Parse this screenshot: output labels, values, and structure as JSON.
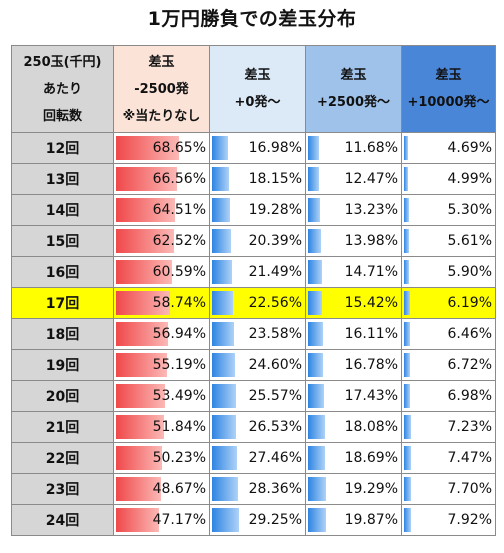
{
  "chart_data": {
    "type": "table",
    "title": "1万円勝負での差玉分布",
    "columns": [
      [
        "250玉(千円)",
        "あたり",
        "回転数"
      ],
      [
        "差玉",
        "-2500発",
        "※当たりなし"
      ],
      [
        "差玉",
        "+0発～"
      ],
      [
        "差玉",
        "+2500発～"
      ],
      [
        "差玉",
        "+10000発～"
      ]
    ],
    "highlight_row": "17回",
    "rows": [
      {
        "label": "12回",
        "values": [
          "68.65%",
          "16.98%",
          "11.68%",
          "4.69%"
        ]
      },
      {
        "label": "13回",
        "values": [
          "66.56%",
          "18.15%",
          "12.47%",
          "4.99%"
        ]
      },
      {
        "label": "14回",
        "values": [
          "64.51%",
          "19.28%",
          "13.23%",
          "5.30%"
        ]
      },
      {
        "label": "15回",
        "values": [
          "62.52%",
          "20.39%",
          "13.98%",
          "5.61%"
        ]
      },
      {
        "label": "16回",
        "values": [
          "60.59%",
          "21.49%",
          "14.71%",
          "5.90%"
        ]
      },
      {
        "label": "17回",
        "values": [
          "58.74%",
          "22.56%",
          "15.42%",
          "6.19%"
        ]
      },
      {
        "label": "18回",
        "values": [
          "56.94%",
          "23.58%",
          "16.11%",
          "6.46%"
        ]
      },
      {
        "label": "19回",
        "values": [
          "55.19%",
          "24.60%",
          "16.78%",
          "6.72%"
        ]
      },
      {
        "label": "20回",
        "values": [
          "53.49%",
          "25.57%",
          "17.43%",
          "6.98%"
        ]
      },
      {
        "label": "21回",
        "values": [
          "51.84%",
          "26.53%",
          "18.08%",
          "7.23%"
        ]
      },
      {
        "label": "22回",
        "values": [
          "50.23%",
          "27.46%",
          "18.69%",
          "7.47%"
        ]
      },
      {
        "label": "23回",
        "values": [
          "48.67%",
          "28.36%",
          "19.29%",
          "7.70%"
        ]
      },
      {
        "label": "24回",
        "values": [
          "47.17%",
          "29.25%",
          "19.87%",
          "7.92%"
        ]
      }
    ],
    "colors": {
      "loss_bar": "#f0484a",
      "win_bar": "#2e84e2",
      "highlight": "#ffff00"
    }
  }
}
